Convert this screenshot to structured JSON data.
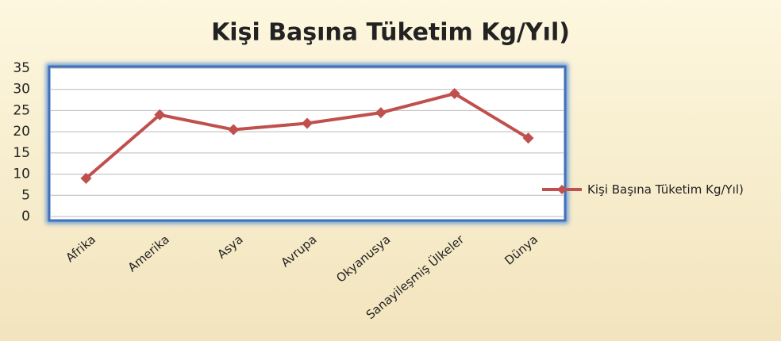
{
  "chart_data": {
    "type": "line",
    "title": "Kişi Başına Tüketim Kg/Yıl)",
    "categories": [
      "Afrika",
      "Amerika",
      "Asya",
      "Avrupa",
      "Okyanusya",
      "Sanayileşmiş Ülkeler",
      "Dünya"
    ],
    "series": [
      {
        "name": "Kişi Başına Tüketim Kg/Yıl)",
        "color": "#c0504d",
        "values": [
          9,
          24,
          20.5,
          22,
          24.5,
          29,
          18.5
        ]
      }
    ],
    "ylim": [
      0,
      35
    ],
    "yticks": [
      0,
      5,
      10,
      15,
      20,
      25,
      30,
      35
    ],
    "grid": true,
    "legend": "right"
  }
}
